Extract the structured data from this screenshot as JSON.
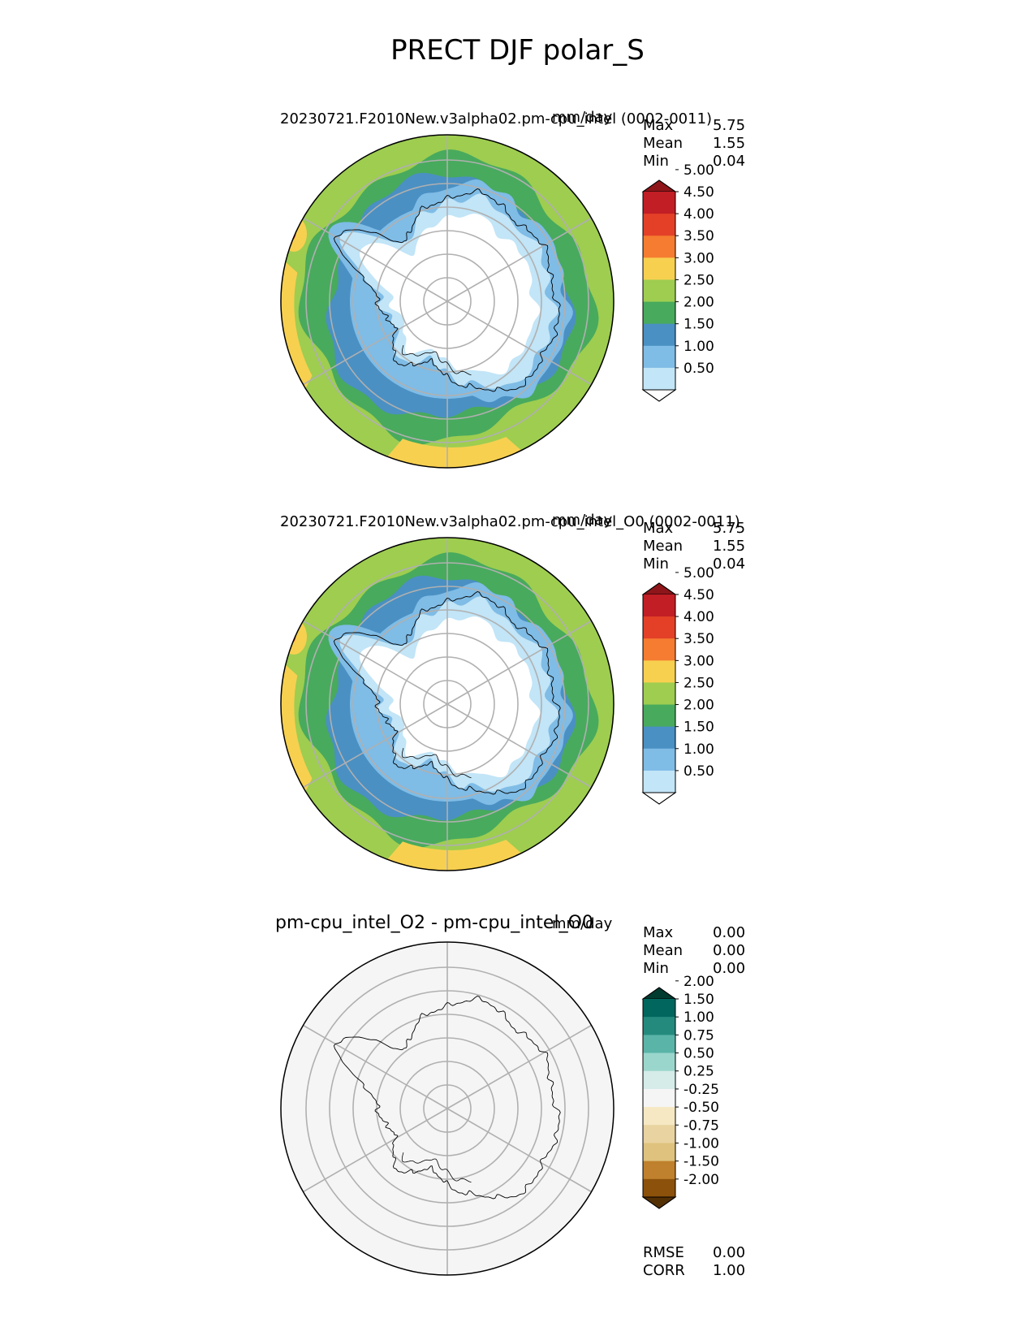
{
  "figure": {
    "title": "PRECT DJF polar_S"
  },
  "colormaps": {
    "precip": {
      "colors": [
        "#ffffff",
        "#c2e5f7",
        "#7fbce6",
        "#4a90c3",
        "#48aa5d",
        "#9ecd50",
        "#f7d050",
        "#f57c30",
        "#e34027",
        "#c11e25",
        "#8e1519"
      ],
      "tick_labels": [
        "0.50",
        "1.00",
        "1.50",
        "2.00",
        "2.50",
        "3.00",
        "3.50",
        "4.00",
        "4.50",
        "5.00"
      ]
    },
    "diff": {
      "colors": [
        "#543005",
        "#8c510a",
        "#bf812d",
        "#dfc27d",
        "#e9d3a0",
        "#f6e8c3",
        "#f5f5f5",
        "#d5ece9",
        "#9bd6cc",
        "#5ab4a8",
        "#258a7e",
        "#01665e",
        "#003c30"
      ],
      "tick_labels": [
        "-2.00",
        "-1.50",
        "-1.00",
        "-0.75",
        "-0.50",
        "-0.25",
        "0.25",
        "0.50",
        "0.75",
        "1.00",
        "1.50",
        "2.00"
      ]
    }
  },
  "panels": [
    {
      "title": "20230721.F2010New.v3alpha02.pm-cpu_intel (0002-0011)",
      "units": "mm/day",
      "stats": [
        {
          "label": "Max",
          "value": "5.75"
        },
        {
          "label": "Mean",
          "value": "1.55"
        },
        {
          "label": "Min",
          "value": "0.04"
        }
      ],
      "colorbar": "precip"
    },
    {
      "title": "20230721.F2010New.v3alpha02.pm-cpu_intel_O0 (0002-0011)",
      "units": "mm/day",
      "stats": [
        {
          "label": "Max",
          "value": "5.75"
        },
        {
          "label": "Mean",
          "value": "1.55"
        },
        {
          "label": "Min",
          "value": "0.04"
        }
      ],
      "colorbar": "precip"
    },
    {
      "title": "pm-cpu_intel_O2 - pm-cpu_intel_O0",
      "units": "mm/day",
      "stats": [
        {
          "label": "Max",
          "value": "0.00"
        },
        {
          "label": "Mean",
          "value": "0.00"
        },
        {
          "label": "Min",
          "value": "0.00"
        }
      ],
      "colorbar": "diff",
      "metrics": [
        {
          "label": "RMSE",
          "value": "0.00"
        },
        {
          "label": "CORR",
          "value": "1.00"
        }
      ]
    }
  ],
  "chart_data": [
    {
      "type": "heatmap",
      "title": "20230721.F2010New.v3alpha02.pm-cpu_intel (0002-0011)",
      "projection": "south polar stereographic",
      "units": "mm/day",
      "contour_levels": [
        0.5,
        1.0,
        1.5,
        2.0,
        2.5,
        3.0,
        3.5,
        4.0,
        4.5,
        5.0
      ],
      "extend": "both",
      "max": 5.75,
      "mean": 1.55,
      "min": 0.04,
      "grid": true
    },
    {
      "type": "heatmap",
      "title": "20230721.F2010New.v3alpha02.pm-cpu_intel_O0 (0002-0011)",
      "projection": "south polar stereographic",
      "units": "mm/day",
      "contour_levels": [
        0.5,
        1.0,
        1.5,
        2.0,
        2.5,
        3.0,
        3.5,
        4.0,
        4.5,
        5.0
      ],
      "extend": "both",
      "max": 5.75,
      "mean": 1.55,
      "min": 0.04,
      "grid": true
    },
    {
      "type": "heatmap",
      "title": "pm-cpu_intel_O2 - pm-cpu_intel_O0",
      "projection": "south polar stereographic",
      "units": "mm/day",
      "contour_levels": [
        -2.0,
        -1.5,
        -1.0,
        -0.75,
        -0.5,
        -0.25,
        0.25,
        0.5,
        0.75,
        1.0,
        1.5,
        2.0
      ],
      "extend": "both",
      "max": 0.0,
      "mean": 0.0,
      "min": 0.0,
      "rmse": 0.0,
      "corr": 1.0,
      "grid": true
    }
  ]
}
